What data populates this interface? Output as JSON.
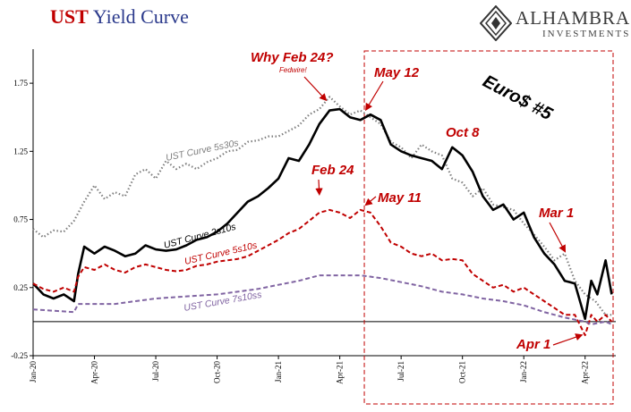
{
  "title": {
    "part1": "UST",
    "part2": "Yield Curve"
  },
  "logo": {
    "name": "Alhambra",
    "sub": "Investments",
    "mark": "alhambra-diamond-logo"
  },
  "colors": {
    "red": "#c00000",
    "navy": "#2b3a8c",
    "black": "#000000",
    "gray": "#7f7f7f",
    "dred": "#c00000",
    "purple": "#8064a2"
  },
  "chart_data": {
    "type": "line",
    "title": "UST Yield Curve",
    "xlabel": "",
    "ylabel": "",
    "ylim": [
      -0.25,
      2.0
    ],
    "xlim": [
      0,
      28.5
    ],
    "x_unit": "months since Jan 2020",
    "yticks": [
      1.75,
      1.25,
      0.75,
      0.25,
      -0.25
    ],
    "ytick_labels": [
      "1.75",
      "1.25",
      "0.75",
      "0.25",
      "-0.25"
    ],
    "xticks": [
      {
        "x": 0,
        "label": "Jan-20"
      },
      {
        "x": 3,
        "label": "Apr-20"
      },
      {
        "x": 6,
        "label": "Jul-20"
      },
      {
        "x": 9,
        "label": "Oct-20"
      },
      {
        "x": 12,
        "label": "Jan-21"
      },
      {
        "x": 15,
        "label": "Apr-21"
      },
      {
        "x": 18,
        "label": "Jul-21"
      },
      {
        "x": 21,
        "label": "Oct-21"
      },
      {
        "x": 24,
        "label": "Jan-22"
      },
      {
        "x": 27,
        "label": "Apr-22"
      }
    ],
    "zero_line": 0,
    "series": [
      {
        "name": "UST Curve 5s30s",
        "style": "gray-dotted",
        "x": [
          0,
          0.5,
          1,
          1.5,
          2,
          2.5,
          3,
          3.5,
          4,
          4.5,
          5,
          5.5,
          6,
          6.5,
          7,
          7.5,
          8,
          8.5,
          9,
          9.5,
          10,
          10.5,
          11,
          11.5,
          12,
          12.5,
          13,
          13.5,
          14,
          14.5,
          15,
          15.5,
          16,
          16.5,
          17,
          17.5,
          18,
          18.5,
          19,
          19.5,
          20,
          20.5,
          21,
          21.5,
          22,
          22.5,
          23,
          23.5,
          24,
          24.5,
          25,
          25.5,
          26,
          26.5,
          27,
          27.5,
          28,
          28.3
        ],
        "y": [
          0.68,
          0.62,
          0.67,
          0.66,
          0.74,
          0.88,
          1.0,
          0.9,
          0.95,
          0.92,
          1.08,
          1.12,
          1.05,
          1.18,
          1.12,
          1.16,
          1.12,
          1.17,
          1.2,
          1.25,
          1.26,
          1.32,
          1.33,
          1.36,
          1.36,
          1.4,
          1.44,
          1.52,
          1.56,
          1.65,
          1.58,
          1.52,
          1.55,
          1.5,
          1.45,
          1.32,
          1.28,
          1.2,
          1.3,
          1.25,
          1.22,
          1.05,
          1.02,
          0.92,
          0.98,
          0.86,
          0.84,
          0.82,
          0.72,
          0.64,
          0.55,
          0.45,
          0.5,
          0.3,
          0.2,
          0.15,
          0.05,
          0.05
        ]
      },
      {
        "name": "UST Curve 2s10s",
        "style": "black-solid",
        "x": [
          0,
          0.5,
          1,
          1.5,
          2,
          2.2,
          2.5,
          3,
          3.5,
          4,
          4.5,
          5,
          5.5,
          6,
          6.5,
          7,
          7.5,
          8,
          8.5,
          9,
          9.5,
          10,
          10.5,
          11,
          11.5,
          12,
          12.5,
          13,
          13.5,
          14,
          14.5,
          15,
          15.5,
          16,
          16.5,
          17,
          17.5,
          18,
          18.5,
          19,
          19.5,
          20,
          20.5,
          21,
          21.5,
          22,
          22.5,
          23,
          23.5,
          24,
          24.5,
          25,
          25.5,
          26,
          26.5,
          27,
          27.3,
          27.6,
          28,
          28.3
        ],
        "y": [
          0.28,
          0.2,
          0.17,
          0.2,
          0.15,
          0.35,
          0.55,
          0.5,
          0.55,
          0.52,
          0.48,
          0.5,
          0.56,
          0.53,
          0.52,
          0.53,
          0.56,
          0.6,
          0.62,
          0.66,
          0.72,
          0.8,
          0.88,
          0.92,
          0.98,
          1.05,
          1.2,
          1.18,
          1.3,
          1.45,
          1.55,
          1.56,
          1.5,
          1.48,
          1.52,
          1.48,
          1.3,
          1.25,
          1.22,
          1.2,
          1.18,
          1.12,
          1.28,
          1.22,
          1.1,
          0.92,
          0.82,
          0.86,
          0.75,
          0.8,
          0.62,
          0.5,
          0.42,
          0.3,
          0.28,
          0.02,
          0.3,
          0.2,
          0.45,
          0.2
        ]
      },
      {
        "name": "UST Curve 5s10s",
        "style": "red-dashed",
        "x": [
          0,
          0.5,
          1,
          1.5,
          2,
          2.2,
          2.5,
          3,
          3.5,
          4,
          4.5,
          5,
          5.5,
          6,
          6.5,
          7,
          7.5,
          8,
          8.5,
          9,
          9.5,
          10,
          10.5,
          11,
          11.5,
          12,
          12.5,
          13,
          13.5,
          14,
          14.5,
          15,
          15.5,
          16,
          16.5,
          17,
          17.5,
          18,
          18.5,
          19,
          19.5,
          20,
          20.5,
          21,
          21.5,
          22,
          22.5,
          23,
          23.5,
          24,
          24.5,
          25,
          25.5,
          26,
          26.5,
          27,
          27.3,
          27.6,
          28,
          28.3
        ],
        "y": [
          0.28,
          0.24,
          0.22,
          0.25,
          0.22,
          0.33,
          0.4,
          0.38,
          0.42,
          0.38,
          0.36,
          0.4,
          0.42,
          0.4,
          0.38,
          0.37,
          0.38,
          0.41,
          0.42,
          0.44,
          0.45,
          0.46,
          0.48,
          0.52,
          0.56,
          0.6,
          0.65,
          0.68,
          0.74,
          0.8,
          0.82,
          0.8,
          0.76,
          0.82,
          0.8,
          0.7,
          0.58,
          0.55,
          0.5,
          0.48,
          0.5,
          0.45,
          0.46,
          0.45,
          0.35,
          0.3,
          0.25,
          0.27,
          0.22,
          0.25,
          0.2,
          0.15,
          0.1,
          0.05,
          0.05,
          -0.1,
          0.05,
          0.0,
          0.05,
          0.0
        ]
      },
      {
        "name": "UST Curve 7s10ss",
        "style": "purple-dashed",
        "x": [
          0,
          1,
          2,
          2.2,
          3,
          4,
          5,
          6,
          7,
          8,
          9,
          10,
          11,
          12,
          13,
          14,
          15,
          16,
          17,
          18,
          19,
          20,
          21,
          22,
          23,
          24,
          25,
          26,
          27,
          27.3,
          28,
          28.3
        ],
        "y": [
          0.09,
          0.08,
          0.07,
          0.13,
          0.13,
          0.13,
          0.15,
          0.17,
          0.18,
          0.19,
          0.2,
          0.22,
          0.24,
          0.27,
          0.3,
          0.34,
          0.34,
          0.34,
          0.32,
          0.29,
          0.26,
          0.22,
          0.2,
          0.17,
          0.15,
          0.12,
          0.07,
          0.03,
          0.0,
          -0.02,
          0.0,
          -0.02
        ]
      }
    ],
    "series_labels": [
      {
        "name": "UST Curve 5s30s",
        "text": "UST Curve 5s30s"
      },
      {
        "name": "UST Curve 2s10s",
        "text": "UST Curve 2s10s"
      },
      {
        "name": "UST Curve 5s10s",
        "text": "UST Curve 5s10s"
      },
      {
        "name": "UST Curve 7s10ss",
        "text": "UST Curve 7s10ss"
      }
    ],
    "annotations": [
      {
        "text": "Why Feb 24?",
        "sub": "Fedwire!",
        "points_to_x": 14.3,
        "points_to_y": 1.63
      },
      {
        "text": "Feb 24",
        "points_to_x": 14.0,
        "points_to_y": 0.94
      },
      {
        "text": "May 12",
        "points_to_x": 16.3,
        "points_to_y": 1.56
      },
      {
        "text": "May 11",
        "points_to_x": 16.3,
        "points_to_y": 0.86
      },
      {
        "text": "Oct 8",
        "points_to_x": null,
        "points_to_y": null
      },
      {
        "text": "Mar 1",
        "points_to_x": 26.0,
        "points_to_y": 0.52
      },
      {
        "text": "Apr 1",
        "points_to_x": 26.8,
        "points_to_y": -0.1
      },
      {
        "text": "Euro$ #5",
        "points_to_x": null,
        "points_to_y": null
      }
    ],
    "highlight_box": {
      "from_x": 16.2,
      "to_x": 28.5,
      "style": "red-dashed"
    }
  }
}
